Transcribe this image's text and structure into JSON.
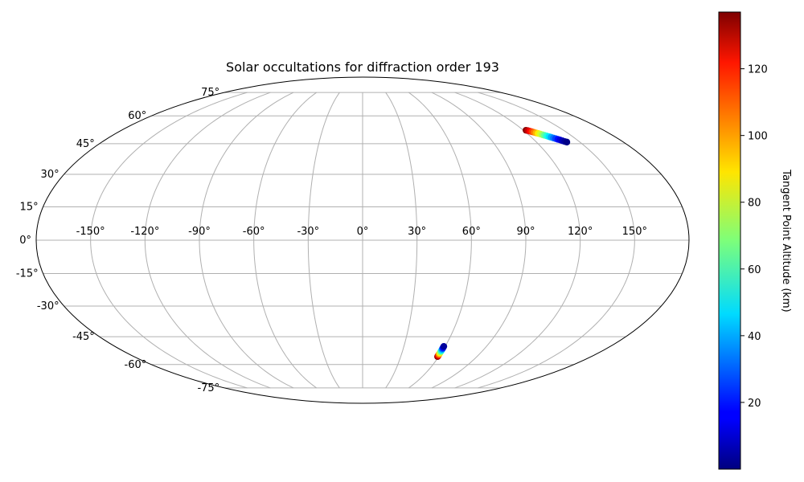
{
  "chart_data": {
    "type": "scatter",
    "projection": "mollweide",
    "title": "Solar occultations for diffraction order 193",
    "lon_ticks": [
      "-150°",
      "-120°",
      "-90°",
      "-60°",
      "-30°",
      "0°",
      "30°",
      "60°",
      "90°",
      "120°",
      "150°"
    ],
    "lat_ticks": [
      "75°",
      "60°",
      "45°",
      "30°",
      "15°",
      "0°",
      "-15°",
      "-30°",
      "-45°",
      "-60°",
      "-75°"
    ],
    "grid": true,
    "colorbar": {
      "label": "Tangent Point Altitude (km)",
      "ticks": [
        "20",
        "40",
        "60",
        "80",
        "100",
        "120"
      ],
      "range": [
        0,
        137
      ],
      "colormap": "jet"
    },
    "series": [
      {
        "points": [
          {
            "lon": 122,
            "lat": 52.0,
            "alt": 136
          },
          {
            "lon": 123,
            "lat": 51.8,
            "alt": 128
          },
          {
            "lon": 124,
            "lat": 51.5,
            "alt": 120
          },
          {
            "lon": 125,
            "lat": 51.2,
            "alt": 112
          },
          {
            "lon": 126,
            "lat": 50.9,
            "alt": 104
          },
          {
            "lon": 127,
            "lat": 50.6,
            "alt": 96
          },
          {
            "lon": 128,
            "lat": 50.3,
            "alt": 88
          },
          {
            "lon": 129,
            "lat": 50.0,
            "alt": 80
          },
          {
            "lon": 130,
            "lat": 49.6,
            "alt": 72
          },
          {
            "lon": 131,
            "lat": 49.3,
            "alt": 64
          },
          {
            "lon": 132,
            "lat": 49.0,
            "alt": 56
          },
          {
            "lon": 133,
            "lat": 48.6,
            "alt": 48
          },
          {
            "lon": 134,
            "lat": 48.3,
            "alt": 40
          },
          {
            "lon": 135,
            "lat": 47.9,
            "alt": 33
          },
          {
            "lon": 136,
            "lat": 47.6,
            "alt": 26
          },
          {
            "lon": 137,
            "lat": 47.2,
            "alt": 19
          },
          {
            "lon": 138,
            "lat": 46.9,
            "alt": 13
          },
          {
            "lon": 139,
            "lat": 46.5,
            "alt": 8
          },
          {
            "lon": 140,
            "lat": 46.1,
            "alt": 4
          },
          {
            "lon": 141,
            "lat": 45.8,
            "alt": 1
          }
        ]
      },
      {
        "points": [
          {
            "lon": 59.0,
            "lat": -55.5,
            "alt": 136
          },
          {
            "lon": 59.0,
            "lat": -55.0,
            "alt": 124
          },
          {
            "lon": 59.0,
            "lat": -54.5,
            "alt": 110
          },
          {
            "lon": 59.0,
            "lat": -54.0,
            "alt": 96
          },
          {
            "lon": 59.0,
            "lat": -53.5,
            "alt": 84
          },
          {
            "lon": 59.0,
            "lat": -53.0,
            "alt": 72
          },
          {
            "lon": 59.0,
            "lat": -52.5,
            "alt": 60
          },
          {
            "lon": 59.0,
            "lat": -52.0,
            "alt": 48
          },
          {
            "lon": 59.0,
            "lat": -51.5,
            "alt": 36
          },
          {
            "lon": 59.0,
            "lat": -51.0,
            "alt": 24
          },
          {
            "lon": 59.0,
            "lat": -50.5,
            "alt": 14
          },
          {
            "lon": 59.0,
            "lat": -50.0,
            "alt": 4
          }
        ]
      }
    ]
  }
}
